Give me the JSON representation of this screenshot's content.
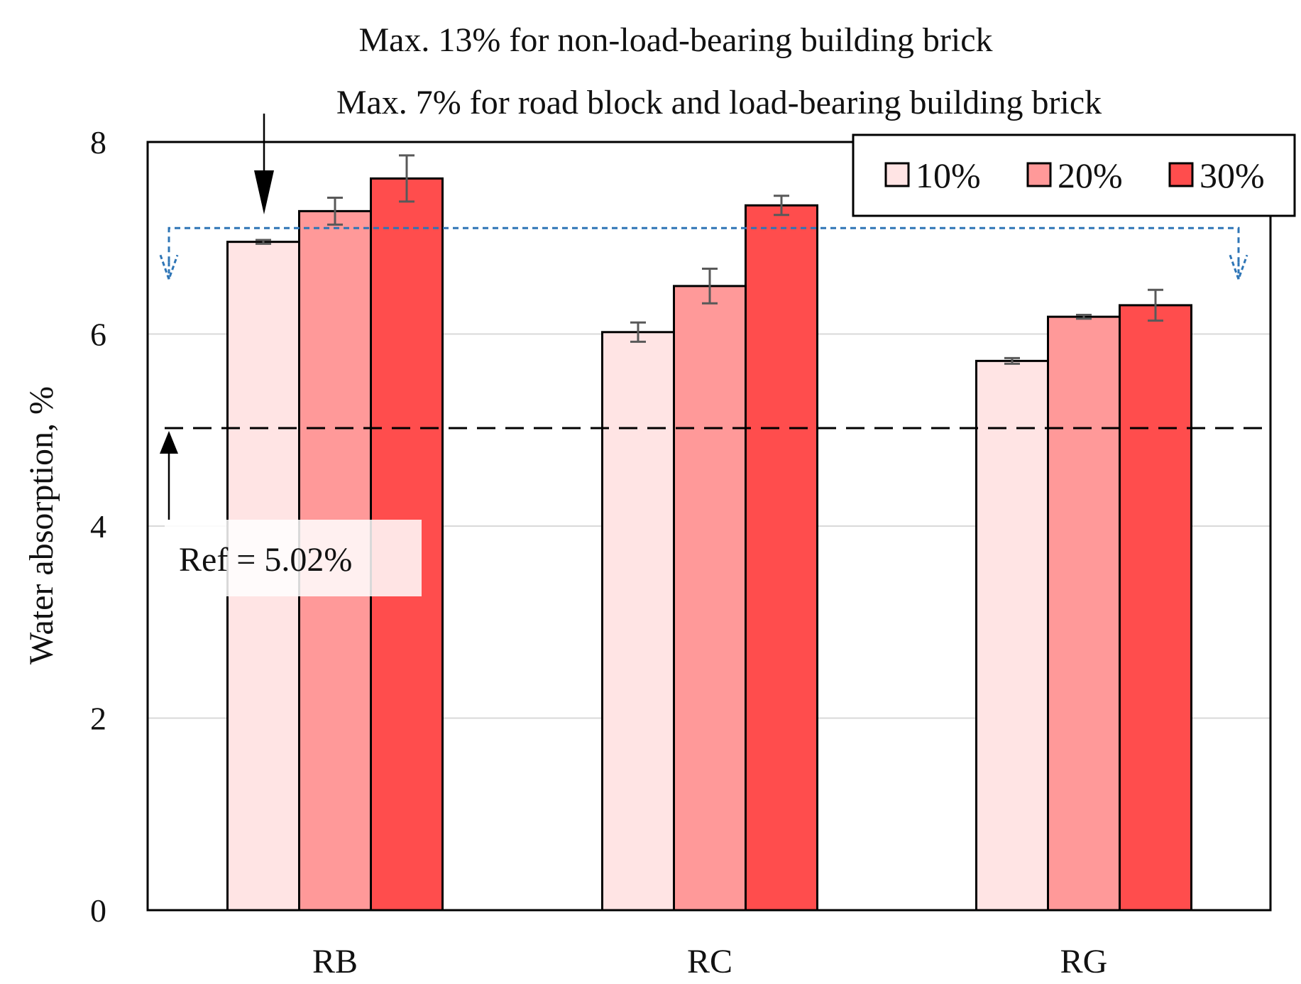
{
  "chart_data": {
    "type": "bar",
    "title": "",
    "xlabel": "",
    "ylabel": "Water absorption, %",
    "ylim": [
      0,
      8
    ],
    "yticks": [
      "0",
      "2",
      "4",
      "6",
      "8"
    ],
    "categories": [
      "RB",
      "RC",
      "RG"
    ],
    "series": [
      {
        "name": "10%",
        "color": "#ffe4e4",
        "values": [
          6.96,
          6.02,
          5.72
        ],
        "errors": [
          0.02,
          0.1,
          0.03
        ]
      },
      {
        "name": "20%",
        "color": "#ff9999",
        "values": [
          7.28,
          6.5,
          6.18
        ],
        "errors": [
          0.14,
          0.18,
          0.02
        ]
      },
      {
        "name": "30%",
        "color": "#ff4d4d",
        "values": [
          7.62,
          7.34,
          6.3
        ],
        "errors": [
          0.24,
          0.1,
          0.16
        ]
      }
    ],
    "grid": true,
    "legend_position": "top-right",
    "reference_line": {
      "value": 5.02,
      "label": "Ref = 5.02%"
    },
    "limit_line": {
      "value": 7.0
    },
    "annotations": {
      "max13": "Max. 13% for non-load-bearing building brick",
      "max7": "Max. 7% for road block and load-bearing building brick"
    },
    "colors": {
      "axis": "#000000",
      "grid": "#d9d9d9",
      "limit_line": "#2e75b6",
      "error_bar": "#595959"
    }
  }
}
